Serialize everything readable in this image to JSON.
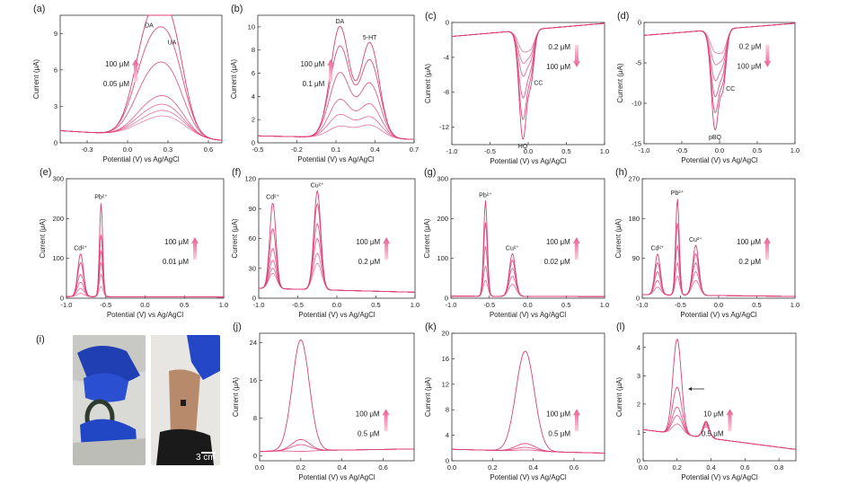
{
  "colors": {
    "curve": "#dc3f78",
    "arrow_top": "#e85c92",
    "arrow_bottom": "#fbd3e2"
  },
  "shared": {
    "ylabel": "Current (μA)",
    "xlabel": "Potential (V) vs Ag/AgCl"
  },
  "photo_panel": {
    "label": "(i)",
    "scale_bar": "3 cm"
  },
  "chart_data": [
    {
      "id": "a",
      "label": "(a)",
      "type": "line",
      "xlim": [
        -0.5,
        0.7
      ],
      "ylim": [
        0,
        10.5
      ],
      "xticks": [
        "-0.3",
        "0.0",
        "0.3",
        "0.6"
      ],
      "xtick_values": [
        -0.3,
        0,
        0.3,
        0.6
      ],
      "yticks": [
        "0",
        "3",
        "6",
        "9"
      ],
      "ytick_values": [
        0,
        3,
        6,
        9
      ],
      "peaks": [
        {
          "x": 0.16,
          "label": "DA"
        },
        {
          "x": 0.33,
          "label": "UA"
        }
      ],
      "peak_heights": [
        [
          9.2,
          7.8
        ],
        [
          7.2,
          6.2
        ],
        [
          4.9,
          4.3
        ],
        [
          2.8,
          2.6
        ],
        [
          2.3,
          2.1
        ],
        [
          1.9,
          1.8
        ],
        [
          1.6,
          1.5
        ]
      ],
      "baseline_left": 1.0,
      "baseline_right": 0.2,
      "legend": {
        "top": "100 μM",
        "bottom": "0.05 μM",
        "direction": "up"
      }
    },
    {
      "id": "b",
      "label": "(b)",
      "type": "line",
      "xlim": [
        -0.5,
        0.7
      ],
      "ylim": [
        0,
        11
      ],
      "xticks": [
        "-0.5",
        "-0.2",
        "0.1",
        "0.4",
        "0.7"
      ],
      "xtick_values": [
        -0.5,
        -0.2,
        0.1,
        0.4,
        0.7
      ],
      "yticks": [
        "0",
        "2",
        "4",
        "6",
        "8",
        "10"
      ],
      "ytick_values": [
        0,
        2,
        4,
        6,
        8,
        10
      ],
      "peaks": [
        {
          "x": 0.13,
          "label": "DA"
        },
        {
          "x": 0.36,
          "label": "5-HT"
        }
      ],
      "peak_heights": [
        [
          10.0,
          8.6
        ],
        [
          8.3,
          7.1
        ],
        [
          6.0,
          5.1
        ],
        [
          3.7,
          3.3
        ],
        [
          2.4,
          2.2
        ],
        [
          1.4,
          1.5
        ]
      ],
      "baseline_left": 0.6,
      "baseline_right": 0.3,
      "legend": {
        "top": "100 μM",
        "bottom": "0.1 μM",
        "direction": "up"
      }
    },
    {
      "id": "c",
      "label": "(c)",
      "type": "line",
      "xlim": [
        -1,
        1
      ],
      "ylim": [
        -14,
        0
      ],
      "xticks": [
        "-1.0",
        "-0.5",
        "0.0",
        "0.5",
        "1.0"
      ],
      "xtick_values": [
        -1,
        -0.5,
        0,
        0.5,
        1
      ],
      "yticks": [
        "-12",
        "-8",
        "-4",
        "0"
      ],
      "ytick_values": [
        -12,
        -8,
        -4,
        0
      ],
      "peaks": [
        {
          "x": -0.07,
          "label": "HQ"
        },
        {
          "x": 0.04,
          "label": "CC"
        }
      ],
      "peak_heights": [
        [
          -13.3,
          -6.0
        ],
        [
          -11.0,
          -5.0
        ],
        [
          -8.5,
          -4.2
        ],
        [
          -6.0,
          -3.4
        ],
        [
          -4.5,
          -2.9
        ],
        [
          -3.2,
          -2.5
        ]
      ],
      "baseline_left": -1.6,
      "baseline_right": -0.1,
      "legend": {
        "top": "0.2 μM",
        "bottom": "100 μM",
        "direction": "down"
      }
    },
    {
      "id": "d",
      "label": "(d)",
      "type": "line",
      "xlim": [
        -1,
        1
      ],
      "ylim": [
        -15,
        0
      ],
      "xticks": [
        "-1.0",
        "-0.5",
        "0.0",
        "0.5",
        "1.0"
      ],
      "xtick_values": [
        -1,
        -0.5,
        0,
        0.5,
        1
      ],
      "yticks": [
        "-15",
        "-10",
        "-5",
        "0"
      ],
      "ytick_values": [
        -15,
        -10,
        -5,
        0
      ],
      "peaks": [
        {
          "x": -0.06,
          "label": "pBQ"
        },
        {
          "x": 0.05,
          "label": "CC"
        }
      ],
      "peak_heights": [
        [
          -13.2,
          -7.2
        ],
        [
          -11.0,
          -6.2
        ],
        [
          -9.0,
          -5.2
        ],
        [
          -7.0,
          -4.2
        ],
        [
          -5.0,
          -3.6
        ],
        [
          -3.5,
          -3.0
        ]
      ],
      "baseline_left": -1.6,
      "baseline_right": -0.1,
      "legend": {
        "top": "0.2 μM",
        "bottom": "100 μM",
        "direction": "down"
      }
    },
    {
      "id": "e",
      "label": "(e)",
      "type": "line",
      "xlim": [
        -1,
        1
      ],
      "ylim": [
        0,
        300
      ],
      "xticks": [
        "-1.0",
        "-0.5",
        "0.0",
        "0.5",
        "1.0"
      ],
      "xtick_values": [
        -1,
        -0.5,
        0,
        0.5,
        1
      ],
      "yticks": [
        "0",
        "100",
        "200",
        "300"
      ],
      "ytick_values": [
        0,
        100,
        200,
        300
      ],
      "peaks": [
        {
          "x": -0.82,
          "label": "Cd²⁺"
        },
        {
          "x": -0.56,
          "label": "Pb²⁺"
        }
      ],
      "peak_heights": [
        [
          112,
          240
        ],
        [
          90,
          160
        ],
        [
          60,
          120
        ],
        [
          40,
          90
        ],
        [
          25,
          60
        ],
        [
          12,
          30
        ]
      ],
      "baseline_left": 4,
      "baseline_right": 3,
      "legend": {
        "top": "100 μM",
        "bottom": "0.01 μM",
        "direction": "up"
      }
    },
    {
      "id": "f",
      "label": "(f)",
      "type": "line",
      "xlim": [
        -1,
        1
      ],
      "ylim": [
        0,
        120
      ],
      "xticks": [
        "-1.0",
        "-0.5",
        "0.0",
        "0.5",
        "1.0"
      ],
      "xtick_values": [
        -1,
        -0.5,
        0,
        0.5,
        1
      ],
      "yticks": [
        "0",
        "30",
        "60",
        "90",
        "120"
      ],
      "ytick_values": [
        0,
        30,
        60,
        90,
        120
      ],
      "peaks": [
        {
          "x": -0.82,
          "label": "Cd²⁺"
        },
        {
          "x": -0.25,
          "label": "Cu²⁺"
        }
      ],
      "peak_heights": [
        [
          96,
          108
        ],
        [
          70,
          95
        ],
        [
          50,
          75
        ],
        [
          38,
          60
        ],
        [
          30,
          45
        ],
        [
          25,
          35
        ]
      ],
      "baseline_left": 10,
      "baseline_right": 6,
      "legend": {
        "top": "100 μM",
        "bottom": "0.2 μM",
        "direction": "up"
      }
    },
    {
      "id": "g",
      "label": "(g)",
      "type": "line",
      "xlim": [
        -1,
        1
      ],
      "ylim": [
        0,
        300
      ],
      "xticks": [
        "-1.0",
        "-0.5",
        "0.0",
        "0.5",
        "1.0"
      ],
      "xtick_values": [
        -1,
        -0.5,
        0,
        0.5,
        1
      ],
      "yticks": [
        "0",
        "100",
        "200",
        "300"
      ],
      "ytick_values": [
        0,
        100,
        200,
        300
      ],
      "peaks": [
        {
          "x": -0.55,
          "label": "Pb²⁺"
        },
        {
          "x": -0.2,
          "label": "Cu²⁺"
        }
      ],
      "peak_heights": [
        [
          245,
          112
        ],
        [
          190,
          95
        ],
        [
          130,
          75
        ],
        [
          80,
          55
        ],
        [
          45,
          35
        ]
      ],
      "baseline_left": 5,
      "baseline_right": 4,
      "legend": {
        "top": "100 μM",
        "bottom": "0.02 μM",
        "direction": "up"
      }
    },
    {
      "id": "h",
      "label": "(h)",
      "type": "line",
      "xlim": [
        -1,
        1
      ],
      "ylim": [
        0,
        270
      ],
      "xticks": [
        "-1.0",
        "-0.5",
        "0.0",
        "0.5",
        "1.0"
      ],
      "xtick_values": [
        -1,
        -0.5,
        0,
        0.5,
        1
      ],
      "yticks": [
        "0",
        "90",
        "180",
        "270"
      ],
      "ytick_values": [
        0,
        90,
        180,
        270
      ],
      "peaks": [
        {
          "x": -0.8,
          "label": "Cd²⁺"
        },
        {
          "x": -0.54,
          "label": "Pb²⁺"
        },
        {
          "x": -0.3,
          "label": "Cu²⁺"
        }
      ],
      "peak_heights": [
        [
          100,
          225,
          120
        ],
        [
          80,
          170,
          100
        ],
        [
          60,
          120,
          80
        ],
        [
          40,
          80,
          60
        ],
        [
          25,
          50,
          40
        ]
      ],
      "baseline_left": 8,
      "baseline_right": 4,
      "legend": {
        "top": "100 μM",
        "bottom": "0.2 μM",
        "direction": "up"
      }
    },
    {
      "id": "j",
      "label": "(j)",
      "type": "line",
      "xlim": [
        0,
        0.75
      ],
      "ylim": [
        -1,
        26
      ],
      "xticks": [
        "0.0",
        "0.2",
        "0.4",
        "0.6"
      ],
      "xtick_values": [
        0,
        0.2,
        0.4,
        0.6
      ],
      "yticks": [
        "0",
        "8",
        "16",
        "24"
      ],
      "ytick_values": [
        0,
        8,
        16,
        24
      ],
      "peaks": [
        {
          "x": 0.2,
          "label": ""
        }
      ],
      "peak_heights": [
        [
          24.6
        ],
        [
          3.5
        ],
        [
          2.4
        ],
        [
          1.0
        ]
      ],
      "baseline_left": 1.0,
      "baseline_right": 1.5,
      "legend": {
        "top": "100 μM",
        "bottom": "0.5 μM",
        "direction": "up"
      }
    },
    {
      "id": "k",
      "label": "(k)",
      "type": "line",
      "xlim": [
        0,
        0.75
      ],
      "ylim": [
        0,
        20
      ],
      "xticks": [
        "0.0",
        "0.2",
        "0.4",
        "0.6"
      ],
      "xtick_values": [
        0,
        0.2,
        0.4,
        0.6
      ],
      "yticks": [
        "0",
        "4",
        "8",
        "12",
        "16",
        "20"
      ],
      "ytick_values": [
        0,
        4,
        8,
        12,
        16,
        20
      ],
      "peaks": [
        {
          "x": 0.36,
          "label": ""
        }
      ],
      "peak_heights": [
        [
          17.2
        ],
        [
          2.7
        ],
        [
          2.1
        ],
        [
          1.7
        ]
      ],
      "baseline_left": 1.8,
      "baseline_right": 1.2,
      "legend": {
        "top": "100 μM",
        "bottom": "0.5 μM",
        "direction": "up"
      }
    },
    {
      "id": "l",
      "label": "(l)",
      "type": "line",
      "xlim": [
        0,
        0.9
      ],
      "ylim": [
        0,
        4.5
      ],
      "xticks": [
        "0.0",
        "0.2",
        "0.4",
        "0.6",
        "0.8"
      ],
      "xtick_values": [
        0,
        0.2,
        0.4,
        0.6,
        0.8
      ],
      "yticks": [
        "0",
        "1",
        "2",
        "3",
        "4"
      ],
      "ytick_values": [
        0,
        1,
        2,
        3,
        4
      ],
      "peaks": [
        {
          "x": 0.2,
          "label": ""
        },
        {
          "x": 0.37,
          "label": ""
        }
      ],
      "peak_heights": [
        [
          4.3,
          1.4
        ],
        [
          2.6,
          1.35
        ],
        [
          1.9,
          1.3
        ],
        [
          1.6,
          1.25
        ],
        [
          1.3,
          1.2
        ]
      ],
      "baseline_left": 1.1,
      "baseline_right": 0.4,
      "legend": {
        "top": "10 μM",
        "bottom": "0.5 μM",
        "direction": "up"
      }
    }
  ]
}
